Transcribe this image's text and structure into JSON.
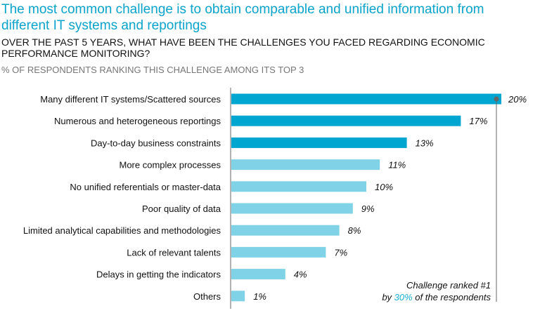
{
  "title": "The most common challenge is to obtain comparable and unified information from different IT systems and reportings",
  "subtitle": "OVER THE PAST 5 YEARS, WHAT HAVE BEEN THE CHALLENGES YOU FACED REGARDING ECONOMIC PERFORMANCE MONITORING?",
  "note": "% OF RESPONDENTS RANKING THIS CHALLENGE AMONG ITS TOP 3",
  "callout": {
    "line1": "Challenge ranked #1",
    "pre": "by ",
    "value": "30%",
    "post": " of the respondents"
  },
  "colors": {
    "top": "#00a6cf",
    "other": "#80d3e7",
    "title": "#0aa3cc"
  },
  "chart_data": {
    "type": "bar",
    "orientation": "horizontal",
    "categories": [
      "Many different IT systems/Scattered sources",
      "Numerous and heterogeneous reportings",
      "Day-to-day business constraints",
      "More complex processes",
      "No unified referentials or master-data",
      "Poor quality of data",
      "Limited analytical capabilities and methodologies",
      "Lack of relevant talents",
      "Delays in getting the indicators",
      "Others"
    ],
    "values": [
      20,
      17,
      13,
      11,
      10,
      9,
      8,
      7,
      4,
      1
    ],
    "labels": [
      "20%",
      "17%",
      "13%",
      "11%",
      "10%",
      "9%",
      "8%",
      "7%",
      "4%",
      "1%"
    ],
    "highlighted_count": 3,
    "xlim": [
      0,
      20
    ],
    "unit": "%"
  }
}
